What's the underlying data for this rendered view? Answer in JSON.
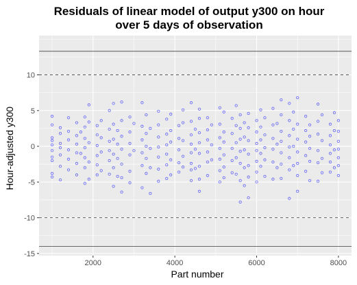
{
  "chart_data": {
    "type": "scatter",
    "title_lines": [
      "Residuals of linear model of output y300 on hour",
      "over 5 days of observation"
    ],
    "xlabel": "Part number",
    "ylabel": "Hour-adjusted y300",
    "xlim": [
      680,
      8320
    ],
    "ylim": [
      -15.3,
      15.5
    ],
    "x_ticks": [
      2000,
      4000,
      6000,
      8000
    ],
    "x_tick_labels": [
      "2000",
      "4000",
      "6000",
      "8000"
    ],
    "y_ticks": [
      -15,
      -10,
      -5,
      0,
      5,
      10
    ],
    "y_tick_labels": [
      "-15",
      "-10",
      "-5",
      "0",
      "5",
      "10"
    ],
    "grid": true,
    "legend": "none",
    "reference_lines": [
      {
        "y": 13.3,
        "style": "solid"
      },
      {
        "y": 10,
        "style": "dashed"
      },
      {
        "y": -10,
        "style": "dashed"
      },
      {
        "y": -14,
        "style": "solid"
      }
    ],
    "colors": {
      "panel_background": "#ebebeb",
      "grid": "#ffffff",
      "point": "#0000ff",
      "reference_line": "#555555"
    },
    "series": [
      {
        "points": [
          [
            1000,
            4.2
          ],
          [
            1000,
            3.0
          ],
          [
            1000,
            1.2
          ],
          [
            1000,
            0.8
          ],
          [
            1000,
            0.2
          ],
          [
            1000,
            -0.6
          ],
          [
            1000,
            -1.5
          ],
          [
            1000,
            -2.0
          ],
          [
            1000,
            -3.8
          ],
          [
            1000,
            -4.3
          ],
          [
            1200,
            2.6
          ],
          [
            1200,
            1.8
          ],
          [
            1200,
            0.4
          ],
          [
            1200,
            -0.2
          ],
          [
            1200,
            -1.2
          ],
          [
            1200,
            -2.8
          ],
          [
            1200,
            -4.7
          ],
          [
            1400,
            4.0
          ],
          [
            1400,
            2.1
          ],
          [
            1400,
            0.9
          ],
          [
            1400,
            -0.5
          ],
          [
            1400,
            -1.8
          ],
          [
            1400,
            -3.3
          ],
          [
            1600,
            3.3
          ],
          [
            1600,
            1.5
          ],
          [
            1600,
            0.3
          ],
          [
            1600,
            -0.9
          ],
          [
            1600,
            -2.4
          ],
          [
            1600,
            -4.0
          ],
          [
            1700,
            2.0
          ],
          [
            1700,
            -1.0
          ],
          [
            1800,
            4.1
          ],
          [
            1800,
            2.7
          ],
          [
            1800,
            1.1
          ],
          [
            1800,
            -0.2
          ],
          [
            1800,
            -1.6
          ],
          [
            1800,
            -3.0
          ],
          [
            1800,
            -5.2
          ],
          [
            1900,
            5.8
          ],
          [
            1900,
            3.4
          ],
          [
            1900,
            0.5
          ],
          [
            1900,
            -2.2
          ],
          [
            1900,
            -4.6
          ],
          [
            2100,
            2.9
          ],
          [
            2100,
            1.6
          ],
          [
            2100,
            0.1
          ],
          [
            2100,
            -1.3
          ],
          [
            2100,
            -2.6
          ],
          [
            2100,
            -4.0
          ],
          [
            2200,
            3.6
          ],
          [
            2200,
            1.2
          ],
          [
            2200,
            -0.8
          ],
          [
            2200,
            -3.4
          ],
          [
            2400,
            5.0
          ],
          [
            2400,
            2.4
          ],
          [
            2400,
            0.7
          ],
          [
            2400,
            -0.6
          ],
          [
            2400,
            -2.0
          ],
          [
            2400,
            -3.9
          ],
          [
            2500,
            6.0
          ],
          [
            2500,
            3.1
          ],
          [
            2500,
            1.0
          ],
          [
            2500,
            -1.1
          ],
          [
            2500,
            -3.0
          ],
          [
            2500,
            -5.6
          ],
          [
            2600,
            2.2
          ],
          [
            2600,
            0.3
          ],
          [
            2600,
            -1.7
          ],
          [
            2600,
            -4.2
          ],
          [
            2700,
            6.2
          ],
          [
            2700,
            3.6
          ],
          [
            2700,
            1.4
          ],
          [
            2700,
            -0.4
          ],
          [
            2700,
            -2.5
          ],
          [
            2700,
            -4.4
          ],
          [
            2700,
            -6.4
          ],
          [
            2900,
            4.1
          ],
          [
            2900,
            2.0
          ],
          [
            2900,
            0.4
          ],
          [
            2900,
            -1.2
          ],
          [
            2900,
            -3.5
          ],
          [
            2900,
            -5.1
          ],
          [
            3000,
            3.2
          ],
          [
            3000,
            -0.6
          ],
          [
            3200,
            6.1
          ],
          [
            3200,
            2.8
          ],
          [
            3200,
            0.9
          ],
          [
            3200,
            -0.9
          ],
          [
            3200,
            -2.7
          ],
          [
            3200,
            -5.8
          ],
          [
            3300,
            4.4
          ],
          [
            3300,
            1.8
          ],
          [
            3300,
            0.0
          ],
          [
            3300,
            -1.7
          ],
          [
            3300,
            -3.8
          ],
          [
            3400,
            2.5
          ],
          [
            3400,
            -0.3
          ],
          [
            3400,
            -3.0
          ],
          [
            3400,
            -6.6
          ],
          [
            3600,
            4.9
          ],
          [
            3600,
            3.0
          ],
          [
            3600,
            1.3
          ],
          [
            3600,
            -0.1
          ],
          [
            3600,
            -1.5
          ],
          [
            3600,
            -3.2
          ],
          [
            3600,
            -4.9
          ],
          [
            3800,
            3.8
          ],
          [
            3800,
            1.7
          ],
          [
            3800,
            0.2
          ],
          [
            3800,
            -1.1
          ],
          [
            3800,
            -2.6
          ],
          [
            3800,
            -4.5
          ],
          [
            3900,
            4.5
          ],
          [
            3900,
            2.2
          ],
          [
            3900,
            0.6
          ],
          [
            3900,
            -1.9
          ],
          [
            3900,
            -4.0
          ],
          [
            4100,
            2.9
          ],
          [
            4100,
            1.1
          ],
          [
            4100,
            -0.5
          ],
          [
            4100,
            -2.3
          ],
          [
            4100,
            -3.6
          ],
          [
            4200,
            5.1
          ],
          [
            4200,
            3.3
          ],
          [
            4200,
            0.8
          ],
          [
            4200,
            -1.4
          ],
          [
            4200,
            -2.9
          ],
          [
            4400,
            6.1
          ],
          [
            4400,
            3.5
          ],
          [
            4400,
            1.6
          ],
          [
            4400,
            0.3
          ],
          [
            4400,
            -0.9
          ],
          [
            4400,
            -2.4
          ],
          [
            4400,
            -3.3
          ],
          [
            4400,
            -4.8
          ],
          [
            4500,
            2.4
          ],
          [
            4500,
            -0.4
          ],
          [
            4500,
            -3.1
          ],
          [
            4600,
            5.2
          ],
          [
            4600,
            3.9
          ],
          [
            4600,
            1.9
          ],
          [
            4600,
            0.5
          ],
          [
            4600,
            -1.0
          ],
          [
            4600,
            -2.8
          ],
          [
            4600,
            -4.6
          ],
          [
            4600,
            -6.3
          ],
          [
            4800,
            4.0
          ],
          [
            4800,
            2.3
          ],
          [
            4800,
            0.9
          ],
          [
            4800,
            -0.8
          ],
          [
            4800,
            -2.2
          ],
          [
            4800,
            -4.1
          ],
          [
            4900,
            3.0
          ],
          [
            4900,
            0.2
          ],
          [
            4900,
            -1.9
          ],
          [
            5100,
            5.4
          ],
          [
            5100,
            3.1
          ],
          [
            5100,
            1.2
          ],
          [
            5100,
            -0.3
          ],
          [
            5100,
            -1.8
          ],
          [
            5100,
            -3.4
          ],
          [
            5100,
            -5.0
          ],
          [
            5200,
            4.8
          ],
          [
            5200,
            2.0
          ],
          [
            5200,
            0.6
          ],
          [
            5200,
            -1.2
          ],
          [
            5200,
            -2.9
          ],
          [
            5200,
            -4.4
          ],
          [
            5400,
            3.9
          ],
          [
            5400,
            1.8
          ],
          [
            5400,
            -0.3
          ],
          [
            5400,
            -2.0
          ],
          [
            5400,
            -3.7
          ],
          [
            5500,
            5.7
          ],
          [
            5500,
            2.9
          ],
          [
            5500,
            0.5
          ],
          [
            5500,
            -1.6
          ],
          [
            5500,
            -3.9
          ],
          [
            5600,
            4.4
          ],
          [
            5600,
            2.5
          ],
          [
            5600,
            1.0
          ],
          [
            5600,
            -0.7
          ],
          [
            5600,
            -2.4
          ],
          [
            5600,
            -4.8
          ],
          [
            5600,
            -7.8
          ],
          [
            5700,
            3.3
          ],
          [
            5700,
            1.3
          ],
          [
            5700,
            -0.5
          ],
          [
            5700,
            -3.0
          ],
          [
            5700,
            -5.5
          ],
          [
            5800,
            4.6
          ],
          [
            5800,
            2.6
          ],
          [
            5800,
            0.8
          ],
          [
            5800,
            -1.1
          ],
          [
            5800,
            -2.7
          ],
          [
            5800,
            -4.3
          ],
          [
            5800,
            -7.2
          ],
          [
            6000,
            3.6
          ],
          [
            6000,
            2.0
          ],
          [
            6000,
            0.4
          ],
          [
            6000,
            -0.6
          ],
          [
            6000,
            -2.1
          ],
          [
            6000,
            -3.6
          ],
          [
            6000,
            -5.0
          ],
          [
            6100,
            5.1
          ],
          [
            6100,
            2.7
          ],
          [
            6100,
            0.9
          ],
          [
            6100,
            -1.0
          ],
          [
            6100,
            -2.8
          ],
          [
            6200,
            4.0
          ],
          [
            6200,
            1.6
          ],
          [
            6200,
            -0.2
          ],
          [
            6200,
            -1.9
          ],
          [
            6200,
            -4.2
          ],
          [
            6400,
            5.3
          ],
          [
            6400,
            3.0
          ],
          [
            6400,
            1.1
          ],
          [
            6400,
            -0.4
          ],
          [
            6400,
            -2.2
          ],
          [
            6400,
            -4.6
          ],
          [
            6500,
            3.2
          ],
          [
            6500,
            0.3
          ],
          [
            6500,
            -3.0
          ],
          [
            6600,
            6.5
          ],
          [
            6600,
            4.4
          ],
          [
            6600,
            2.1
          ],
          [
            6600,
            0.7
          ],
          [
            6600,
            -0.9
          ],
          [
            6600,
            -2.5
          ],
          [
            6600,
            -4.5
          ],
          [
            6800,
            6.0
          ],
          [
            6800,
            3.6
          ],
          [
            6800,
            1.5
          ],
          [
            6800,
            -0.1
          ],
          [
            6800,
            -1.6
          ],
          [
            6800,
            -3.3
          ],
          [
            6800,
            -7.3
          ],
          [
            6900,
            4.8
          ],
          [
            6900,
            2.4
          ],
          [
            6900,
            0.0
          ],
          [
            6900,
            -2.7
          ],
          [
            7000,
            6.8
          ],
          [
            7000,
            3.1
          ],
          [
            7000,
            1.0
          ],
          [
            7000,
            -0.8
          ],
          [
            7000,
            -2.4
          ],
          [
            7000,
            -4.1
          ],
          [
            7000,
            -6.3
          ],
          [
            7200,
            4.2
          ],
          [
            7200,
            2.2
          ],
          [
            7200,
            0.6
          ],
          [
            7200,
            -1.3
          ],
          [
            7200,
            -3.5
          ],
          [
            7300,
            3.0
          ],
          [
            7300,
            1.4
          ],
          [
            7300,
            -0.3
          ],
          [
            7300,
            -2.1
          ],
          [
            7300,
            -4.8
          ],
          [
            7500,
            5.9
          ],
          [
            7500,
            3.5
          ],
          [
            7500,
            1.7
          ],
          [
            7500,
            -0.6
          ],
          [
            7500,
            -2.3
          ],
          [
            7500,
            -4.9
          ],
          [
            7600,
            4.4
          ],
          [
            7600,
            0.8
          ],
          [
            7600,
            -1.7
          ],
          [
            7600,
            -3.7
          ],
          [
            7800,
            3.1
          ],
          [
            7800,
            1.5
          ],
          [
            7800,
            0.2
          ],
          [
            7800,
            -1.0
          ],
          [
            7800,
            -2.2
          ],
          [
            7800,
            -3.6
          ],
          [
            7900,
            4.7
          ],
          [
            7900,
            2.2
          ],
          [
            7900,
            -0.5
          ],
          [
            7900,
            -3.0
          ],
          [
            8000,
            3.6
          ],
          [
            8000,
            2.1
          ],
          [
            8000,
            0.7
          ],
          [
            8000,
            -0.4
          ],
          [
            8000,
            -1.6
          ],
          [
            8000,
            -2.7
          ],
          [
            8000,
            -4.1
          ]
        ]
      }
    ]
  }
}
